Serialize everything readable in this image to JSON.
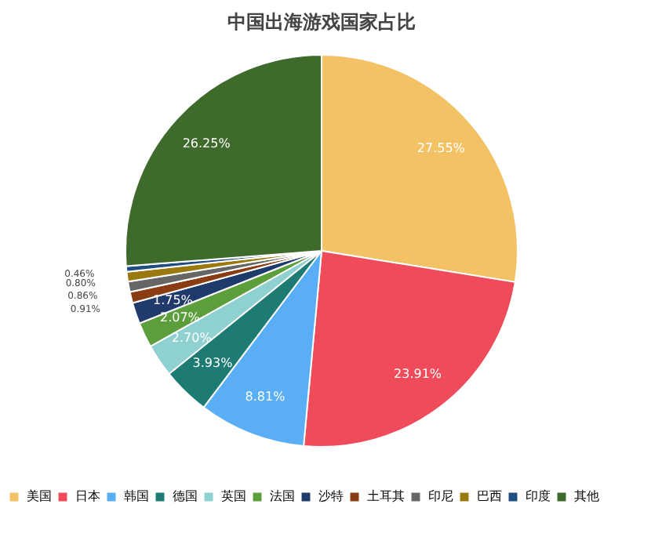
{
  "chart_data": {
    "type": "pie",
    "title": "中国出海游戏国家占比",
    "categories": [
      "美国",
      "日本",
      "韩国",
      "德国",
      "英国",
      "法国",
      "沙特",
      "土耳其",
      "印尼",
      "巴西",
      "印度",
      "其他"
    ],
    "values": [
      27.55,
      23.91,
      8.81,
      3.93,
      2.7,
      2.07,
      1.75,
      0.91,
      0.86,
      0.8,
      0.46,
      26.25
    ],
    "value_labels": [
      "27.55%",
      "23.91%",
      "8.81%",
      "3.93%",
      "2.70%",
      "2.07%",
      "1.75%",
      "0.91%",
      "0.86%",
      "0.80%",
      "0.46%",
      "26.25%"
    ],
    "colors": [
      "#f2c265",
      "#f04b5a",
      "#5aaef5",
      "#1e7b73",
      "#8fd0d0",
      "#5d9e3c",
      "#1f3a6b",
      "#8a3d12",
      "#666666",
      "#9a7a10",
      "#1f4e80",
      "#3e6a2c"
    ],
    "legend": "bottom"
  }
}
